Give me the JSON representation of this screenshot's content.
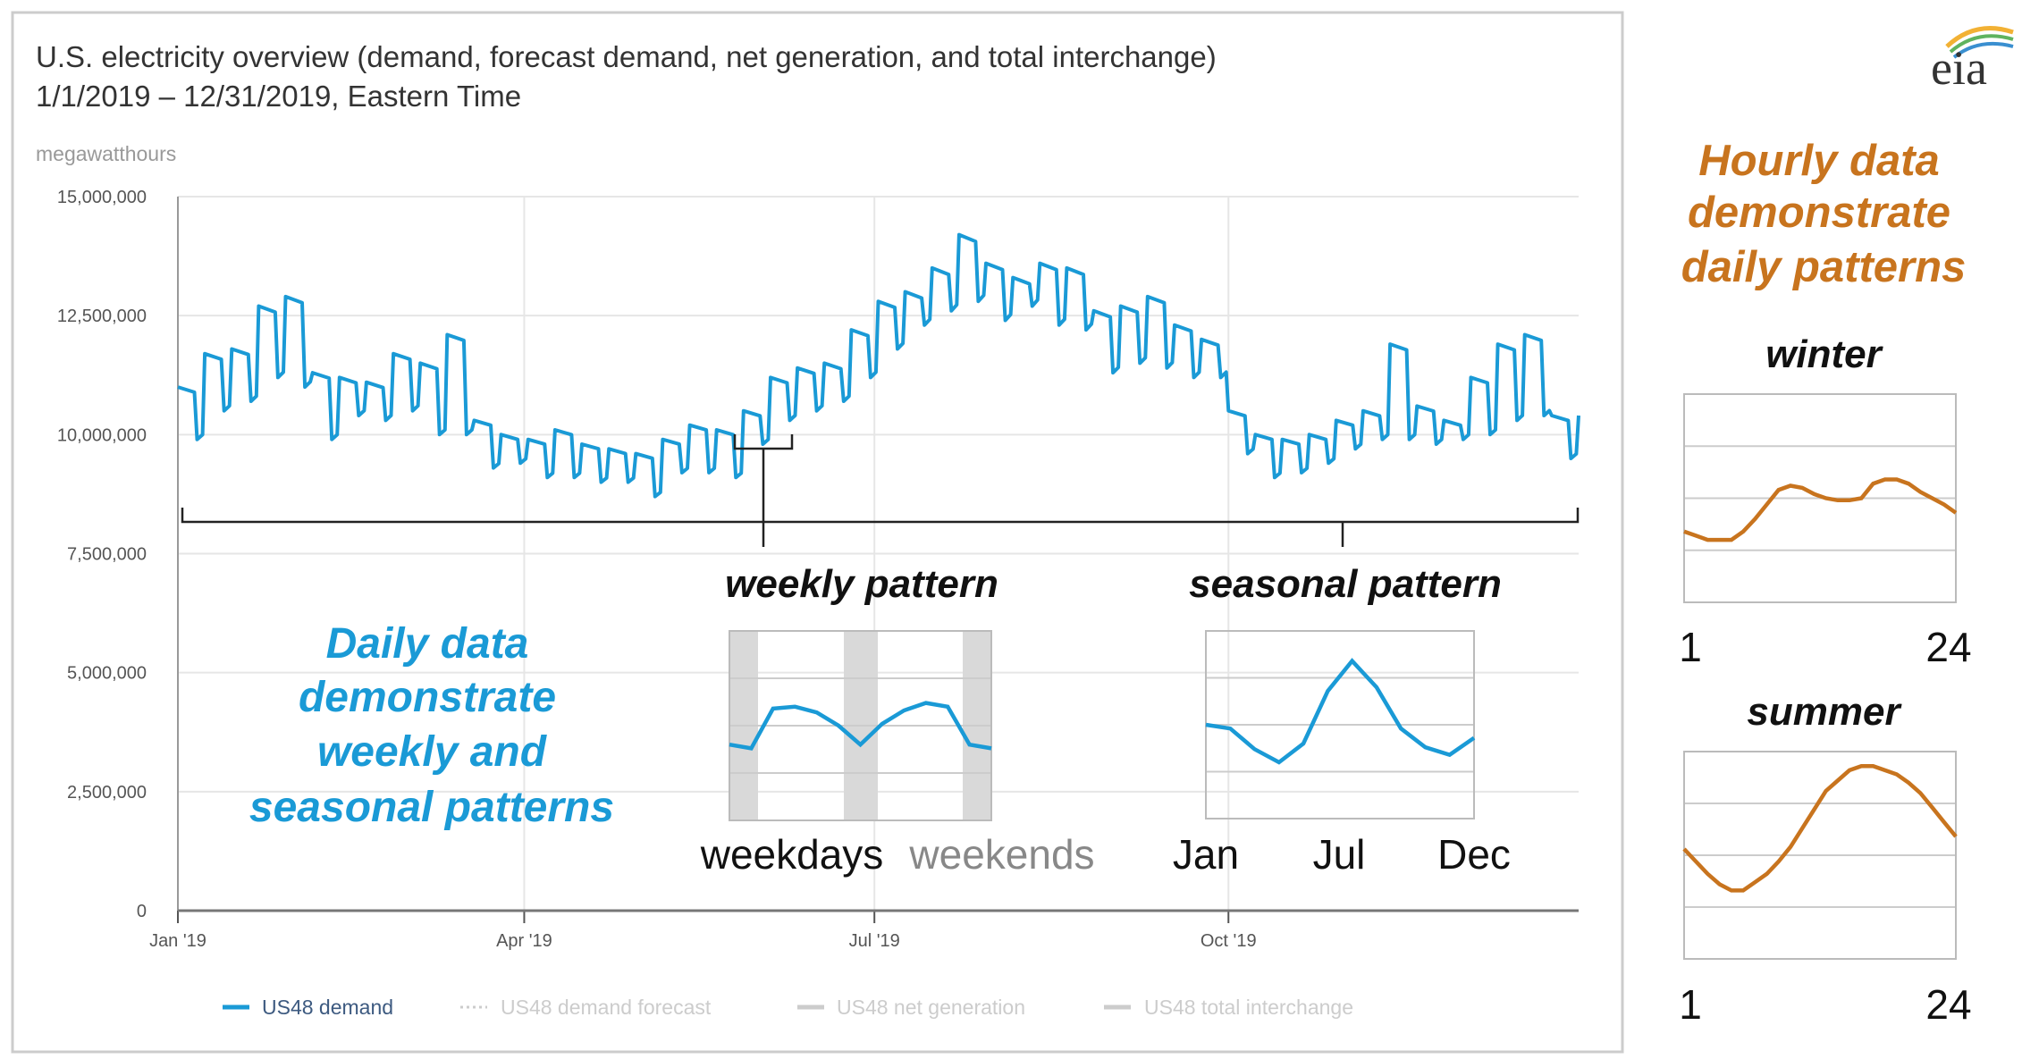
{
  "logo": {
    "text": "eia"
  },
  "colors": {
    "demand": "#1a9ad6",
    "daily_annotation": "#1a9ad6",
    "hourly_annotation": "#c8741e",
    "weekend_band": "#d9d9d9",
    "grid": "#e6e6e6"
  },
  "chart_data": [
    {
      "type": "line",
      "title": "U.S. electricity overview (demand, forecast demand, net generation, and total interchange)",
      "subtitle": "1/1/2019 – 12/31/2019, Eastern Time",
      "ylabel": "megawatthours",
      "ylim": [
        0,
        15000000
      ],
      "yticks": [
        0,
        2500000,
        5000000,
        7500000,
        10000000,
        12500000,
        15000000
      ],
      "ytick_labels": [
        "0",
        "2,500,000",
        "5,000,000",
        "7,500,000",
        "10,000,000",
        "12,500,000",
        "15,000,000"
      ],
      "xlim": [
        "2019-01-01",
        "2019-12-31"
      ],
      "xtick_labels": [
        "Jan '19",
        "Apr '19",
        "Jul '19",
        "Oct '19"
      ],
      "grid": true,
      "legend_position": "bottom",
      "legend": [
        {
          "name": "US48 demand",
          "active": true
        },
        {
          "name": "US48 demand forecast",
          "active": false
        },
        {
          "name": "US48 net generation",
          "active": false
        },
        {
          "name": "US48 total interchange",
          "active": false
        }
      ],
      "series": [
        {
          "name": "US48 demand",
          "weekday": [
            11000000,
            11700000,
            11800000,
            12700000,
            12900000,
            11300000,
            11200000,
            11100000,
            11700000,
            11500000,
            12100000,
            10300000,
            10000000,
            9900000,
            10100000,
            9800000,
            9700000,
            9600000,
            9900000,
            10200000,
            10100000,
            10500000,
            11200000,
            11400000,
            11500000,
            12200000,
            12800000,
            13000000,
            13500000,
            14200000,
            13600000,
            13300000,
            13600000,
            13500000,
            12600000,
            12700000,
            12900000,
            12300000,
            12000000,
            10500000,
            10000000,
            9900000,
            10000000,
            10300000,
            10500000,
            11900000,
            10600000,
            10300000,
            11200000,
            11900000,
            12100000,
            10400000
          ],
          "weekend": [
            9900000,
            10500000,
            10700000,
            11200000,
            11000000,
            9900000,
            10400000,
            10300000,
            10500000,
            10000000,
            10000000,
            9300000,
            9400000,
            9100000,
            9100000,
            9000000,
            9000000,
            8700000,
            9200000,
            9200000,
            9100000,
            9800000,
            10300000,
            10500000,
            10700000,
            11200000,
            11800000,
            12300000,
            12600000,
            12800000,
            12400000,
            12700000,
            12300000,
            12200000,
            11300000,
            11500000,
            11400000,
            11200000,
            11200000,
            9600000,
            9100000,
            9200000,
            9400000,
            9700000,
            9900000,
            9900000,
            9800000,
            9900000,
            10000000,
            10300000,
            10400000,
            9500000
          ]
        }
      ],
      "annotations": {
        "weekly": "weekly pattern",
        "seasonal": "seasonal pattern",
        "daily_lines": [
          "Daily data",
          "demonstrate",
          "weekly and",
          "seasonal patterns"
        ]
      }
    },
    {
      "type": "line",
      "xtick_labels": [
        "weekdays",
        "weekends"
      ],
      "values": [
        40,
        38,
        59,
        60,
        57,
        50,
        40,
        51,
        58,
        62,
        60,
        40,
        38
      ]
    },
    {
      "type": "line",
      "xtick_labels": [
        "Jan",
        "Jul",
        "Dec"
      ],
      "values": [
        50,
        48,
        37,
        30,
        40,
        68,
        84,
        70,
        48,
        38,
        34,
        43
      ]
    },
    {
      "type": "line",
      "title": "winter",
      "xtick_labels": [
        "1",
        "24"
      ],
      "values": [
        34,
        32,
        30,
        30,
        30,
        34,
        40,
        47,
        54,
        56,
        55,
        52,
        50,
        49,
        49,
        50,
        57,
        59,
        59,
        57,
        53,
        50,
        47,
        43
      ]
    },
    {
      "type": "line",
      "title": "summer",
      "xtick_labels": [
        "1",
        "24"
      ],
      "values": [
        53,
        47,
        41,
        36,
        33,
        33,
        37,
        41,
        47,
        54,
        63,
        72,
        81,
        86,
        91,
        93,
        93,
        91,
        89,
        85,
        80,
        73,
        66,
        59
      ]
    }
  ],
  "hourly_annotation_lines": [
    "Hourly data",
    "demonstrate",
    "daily patterns"
  ]
}
